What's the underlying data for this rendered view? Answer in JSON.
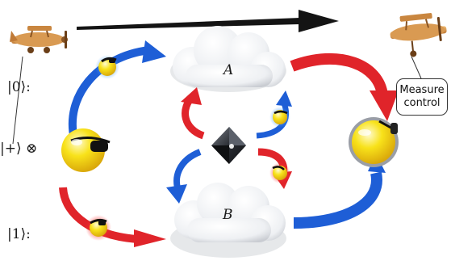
{
  "labels": {
    "ket_zero": "|0⟩:",
    "ket_plus": "|+⟩ ⊗",
    "ket_one": "|1⟩:",
    "cloud_a": "A",
    "cloud_b": "B",
    "measure_line1": "Measure",
    "measure_line2": "control"
  },
  "colors": {
    "red_arrow": "#e0242a",
    "blue_arrow": "#1e5ed6",
    "black_arrow": "#141414",
    "face": "#f8e21a",
    "cloud": "#f1f3f6",
    "plane": "#d99a52"
  },
  "icons": [
    "plane-icon",
    "cloud-icon",
    "smiley-face-icon",
    "diamond-crystal-icon"
  ]
}
